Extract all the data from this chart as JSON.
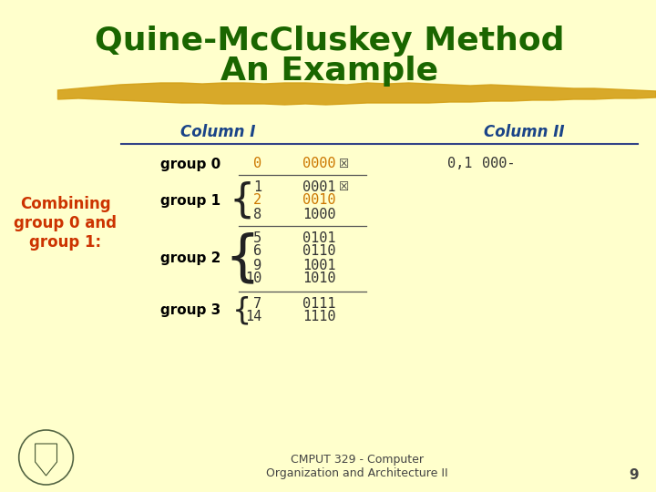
{
  "bg_color": "#FFFFCC",
  "title_line1": "Quine-McCluskey Method",
  "title_line2": "An Example",
  "title_color": "#1a6600",
  "title_fontsize": 26,
  "col1_label": "Column I",
  "col2_label": "Column II",
  "col_label_color": "#1a4488",
  "col_label_fontsize": 12,
  "combining_text": "Combining\ngroup 0 and\ngroup 1:",
  "combining_color": "#cc3300",
  "combining_fontsize": 12,
  "group0_label": "group 0",
  "group1_label": "group 1",
  "group2_label": "group 2",
  "group3_label": "group 3",
  "group_label_color": "#000000",
  "group_fontsize": 11,
  "group0_items": [
    [
      "0",
      "0000"
    ]
  ],
  "group1_items": [
    [
      "1",
      "0001"
    ],
    [
      "2",
      "0010"
    ],
    [
      "8",
      "1000"
    ]
  ],
  "group2_items": [
    [
      "5",
      "0101"
    ],
    [
      "6",
      "0110"
    ],
    [
      "9",
      "1001"
    ],
    [
      "10",
      "1010"
    ]
  ],
  "group3_items": [
    [
      "7",
      "0111"
    ],
    [
      "14",
      "1110"
    ]
  ],
  "orange_color": "#cc7700",
  "normal_color": "#333333",
  "col2_entry_num": "0,1",
  "col2_entry_bits": "000-",
  "col2_color": "#333333",
  "col2_fontsize": 11,
  "footer_text1": "CMPUT 329 - Computer",
  "footer_text2": "Organization and Architecture II",
  "footer_color": "#444444",
  "footer_fontsize": 9,
  "page_number": "9",
  "gold_color": "#D4A017",
  "checkbox_color": "#333333",
  "mono_fontsize": 11,
  "line_color": "#334488",
  "sep_color": "#555555"
}
